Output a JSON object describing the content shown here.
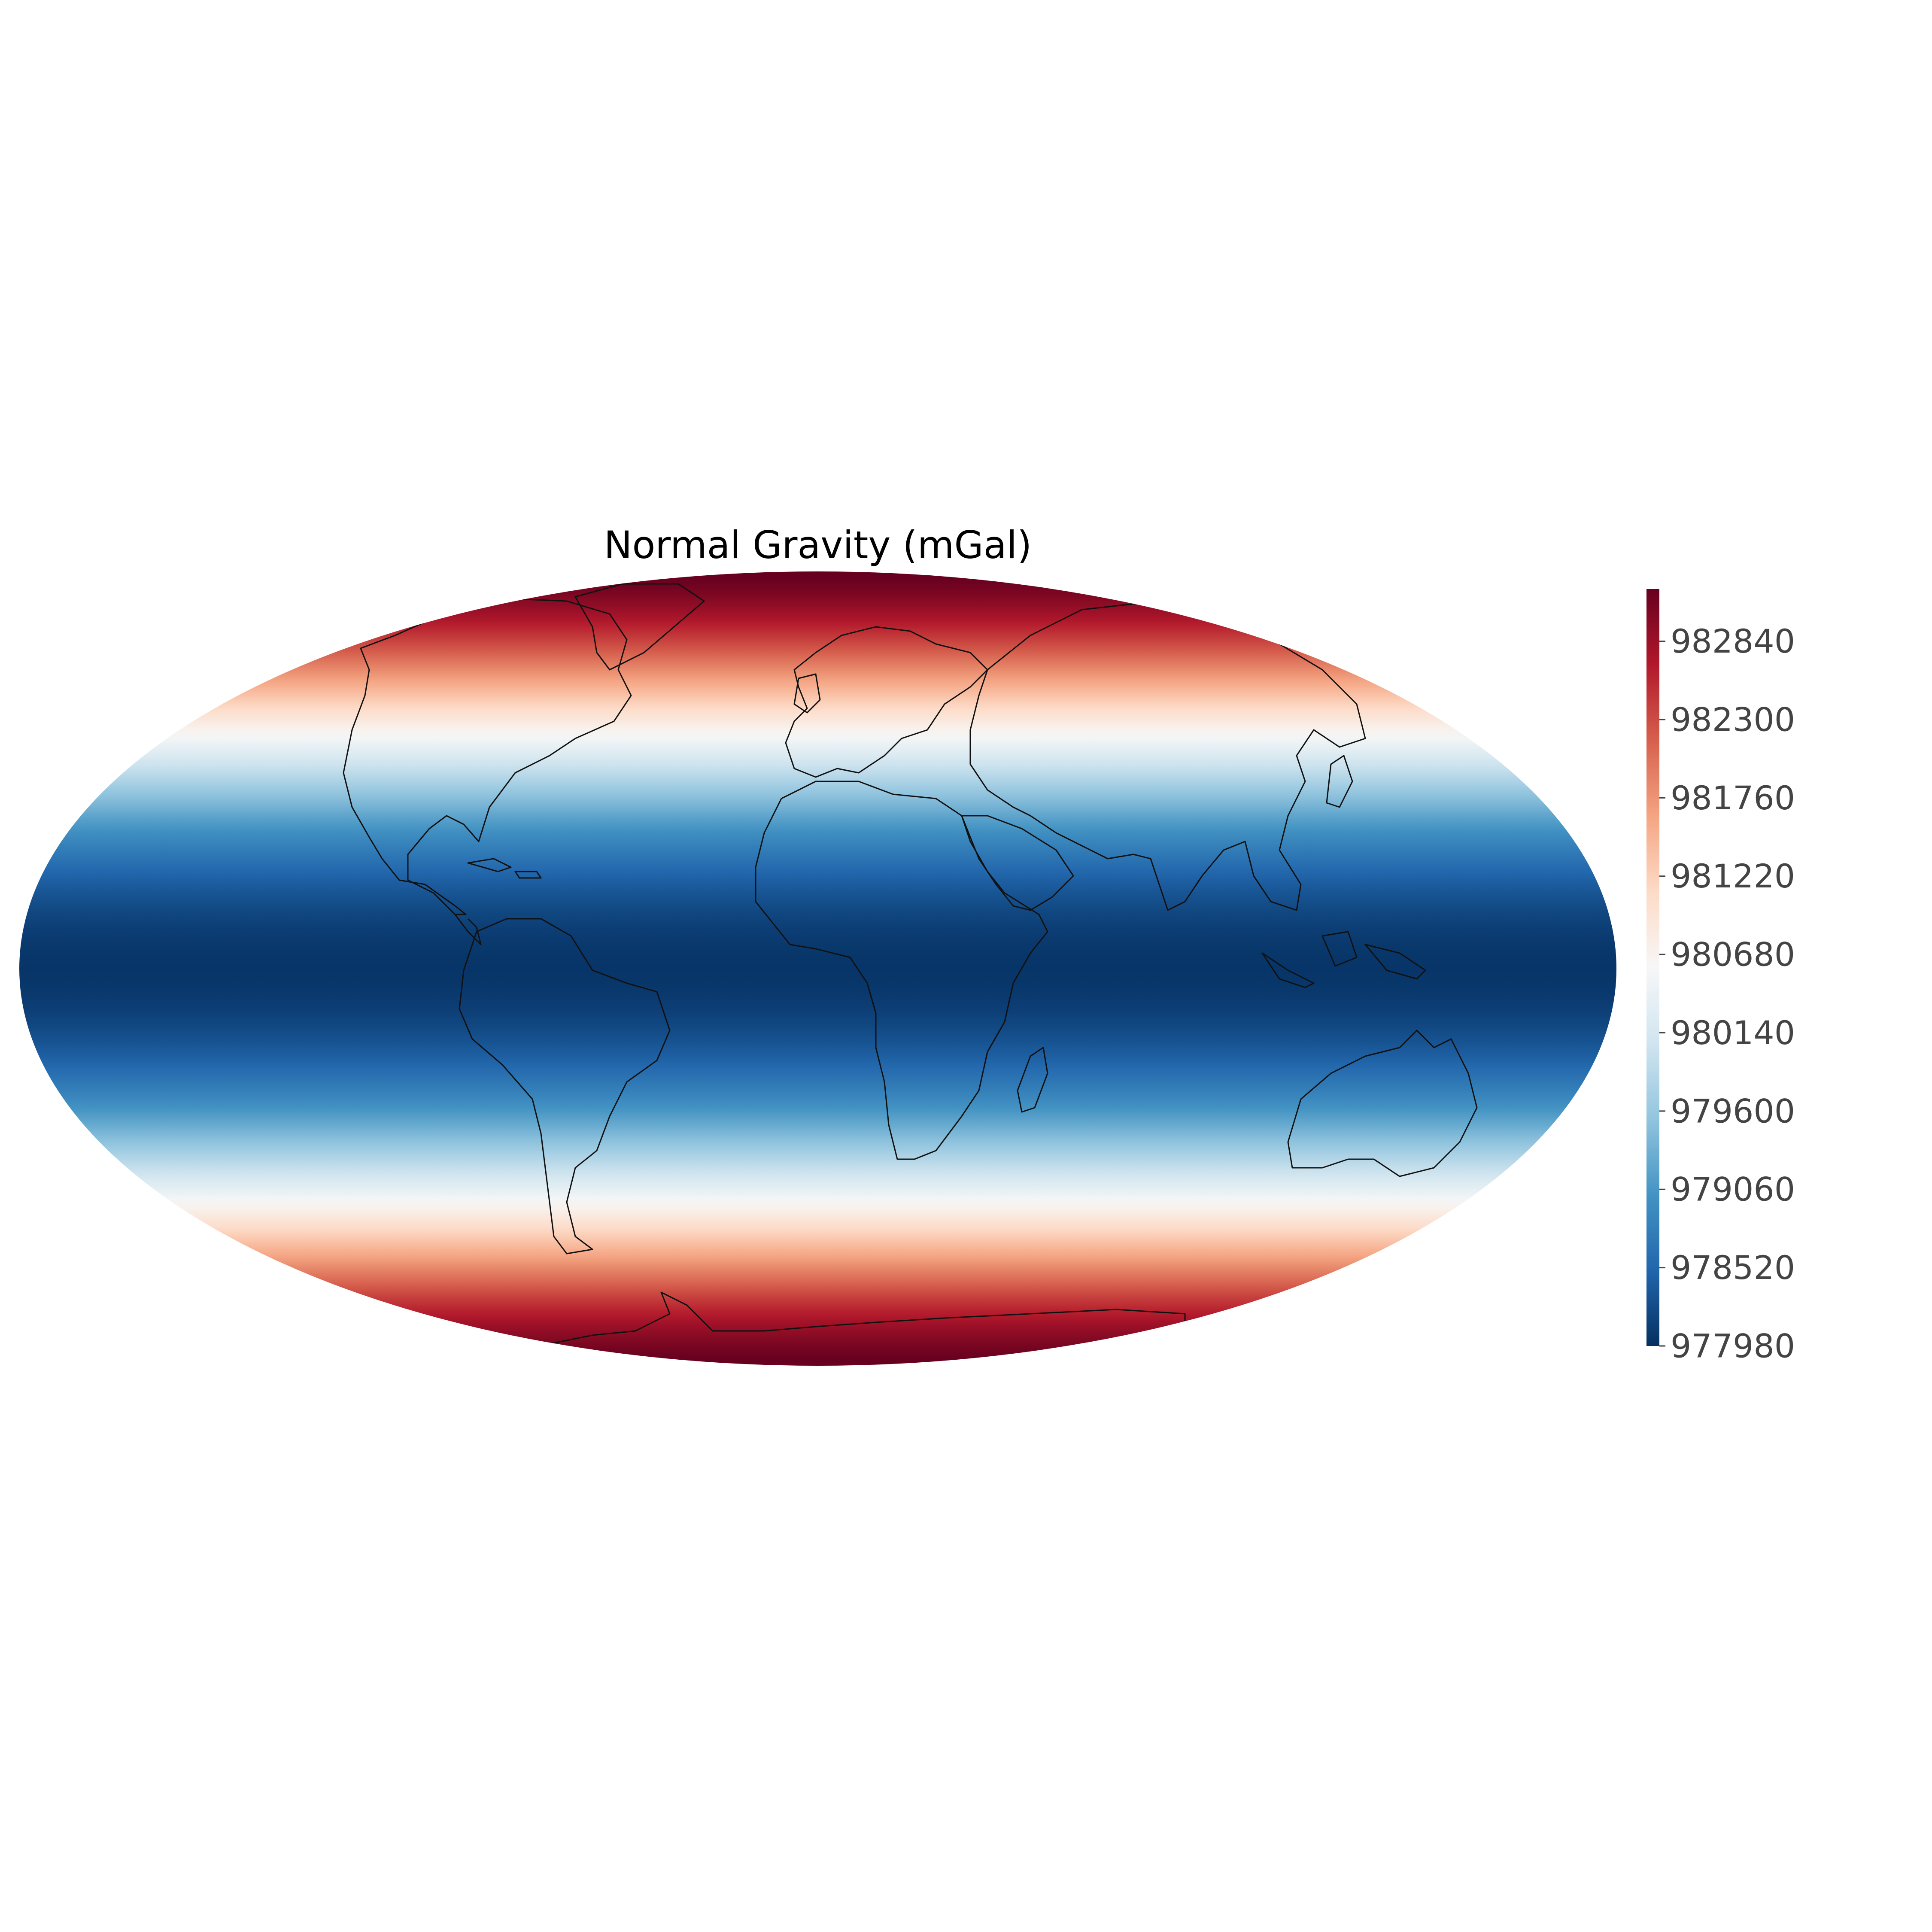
{
  "chart_data": {
    "type": "heatmap",
    "title": "Normal Gravity (mGal)",
    "projection": "mollweide",
    "variable": "normal gravity as a function of latitude",
    "colormap": "RdBu_r",
    "value_range": [
      977980,
      983200
    ],
    "colorbar": {
      "position": "right",
      "orientation": "vertical",
      "ticks": [
        977980,
        978520,
        979060,
        979600,
        980140,
        980680,
        981220,
        981760,
        982300,
        982840
      ],
      "tick_labels": [
        "977980",
        "978520",
        "979060",
        "979600",
        "980140",
        "980680",
        "981220",
        "981760",
        "982300",
        "982840"
      ]
    },
    "coastlines": true,
    "grid": false
  }
}
